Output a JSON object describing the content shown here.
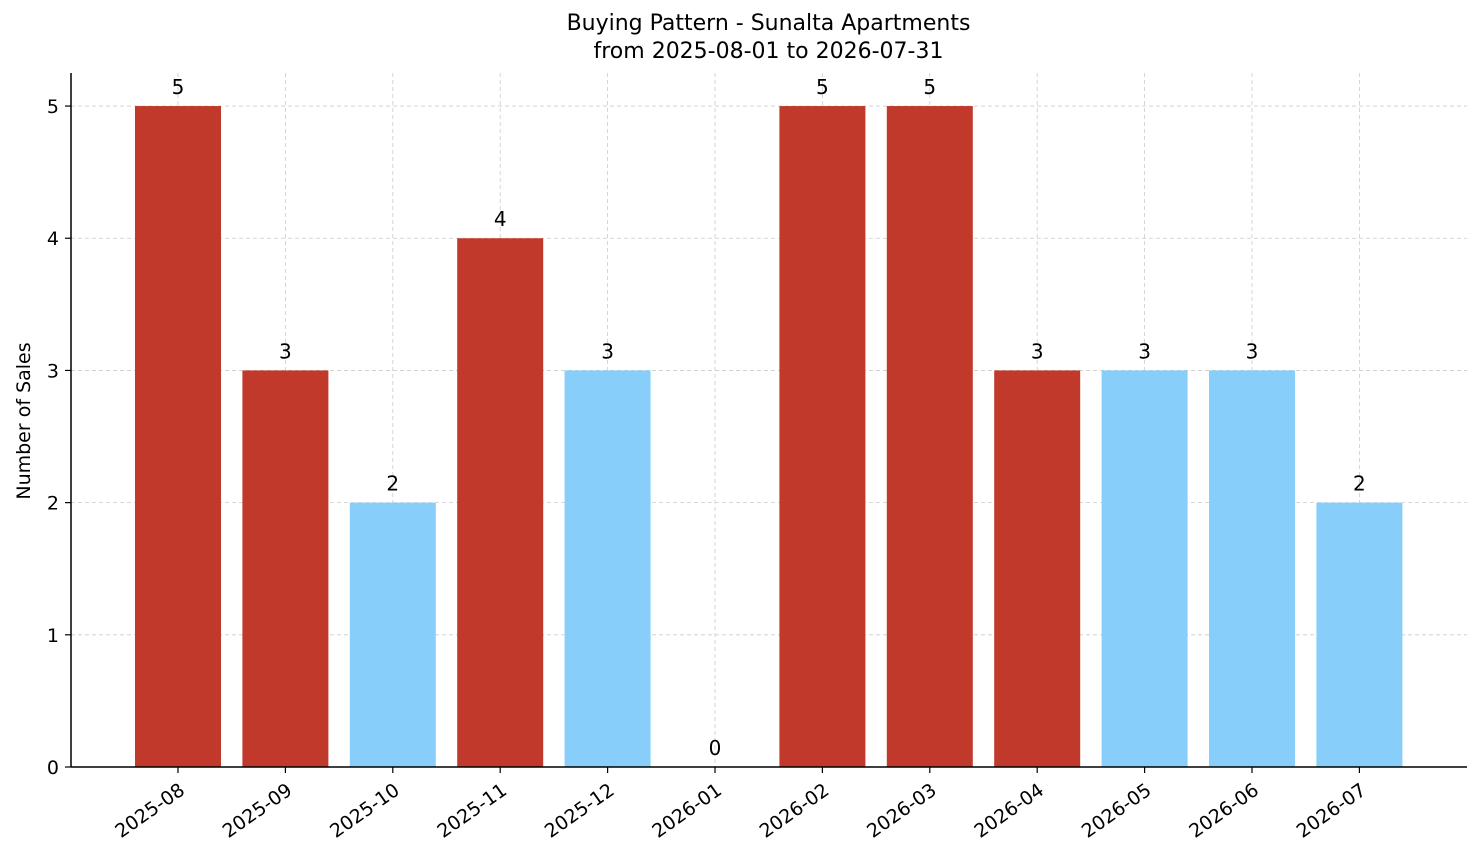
{
  "chart_data": {
    "type": "bar",
    "title": "Buying Pattern - Sunalta Apartments",
    "subtitle": "from 2025-08-01 to 2026-07-31",
    "xlabel": "",
    "ylabel": "Number of Sales",
    "categories": [
      "2025-08",
      "2025-09",
      "2025-10",
      "2025-11",
      "2025-12",
      "2026-01",
      "2026-02",
      "2026-03",
      "2026-04",
      "2026-05",
      "2026-06",
      "2026-07"
    ],
    "values": [
      5,
      3,
      2,
      4,
      3,
      0,
      5,
      5,
      3,
      3,
      3,
      2
    ],
    "bar_colors": [
      "#c0392b",
      "#c0392b",
      "#87cefa",
      "#c0392b",
      "#87cefa",
      "#87cefa",
      "#c0392b",
      "#c0392b",
      "#c0392b",
      "#87cefa",
      "#87cefa",
      "#87cefa"
    ],
    "yticks": [
      0,
      1,
      2,
      3,
      4,
      5
    ],
    "ylim": [
      0,
      5.25
    ],
    "grid": true,
    "legend": "none"
  }
}
